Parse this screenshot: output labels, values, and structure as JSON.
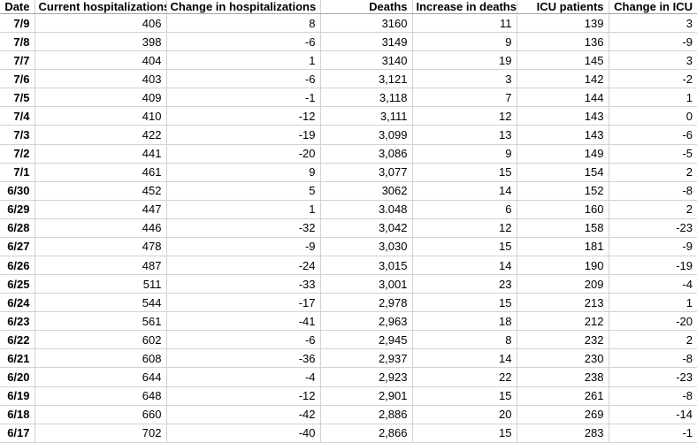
{
  "table": {
    "columns": [
      "Date",
      "Current hospitalizations",
      "Change in hospitalizations",
      "Deaths",
      "Increase in deaths",
      "ICU patients",
      "Change in ICU"
    ],
    "rows": [
      [
        "7/9",
        "406",
        "8",
        "3160",
        "11",
        "139",
        "3"
      ],
      [
        "7/8",
        "398",
        "-6",
        "3149",
        "9",
        "136",
        "-9"
      ],
      [
        "7/7",
        "404",
        "1",
        "3140",
        "19",
        "145",
        "3"
      ],
      [
        "7/6",
        "403",
        "-6",
        "3,121",
        "3",
        "142",
        "-2"
      ],
      [
        "7/5",
        "409",
        "-1",
        "3,118",
        "7",
        "144",
        "1"
      ],
      [
        "7/4",
        "410",
        "-12",
        "3,111",
        "12",
        "143",
        "0"
      ],
      [
        "7/3",
        "422",
        "-19",
        "3,099",
        "13",
        "143",
        "-6"
      ],
      [
        "7/2",
        "441",
        "-20",
        "3,086",
        "9",
        "149",
        "-5"
      ],
      [
        "7/1",
        "461",
        "9",
        "3,077",
        "15",
        "154",
        "2"
      ],
      [
        "6/30",
        "452",
        "5",
        "3062",
        "14",
        "152",
        "-8"
      ],
      [
        "6/29",
        "447",
        "1",
        "3.048",
        "6",
        "160",
        "2"
      ],
      [
        "6/28",
        "446",
        "-32",
        "3,042",
        "12",
        "158",
        "-23"
      ],
      [
        "6/27",
        "478",
        "-9",
        "3,030",
        "15",
        "181",
        "-9"
      ],
      [
        "6/26",
        "487",
        "-24",
        "3,015",
        "14",
        "190",
        "-19"
      ],
      [
        "6/25",
        "511",
        "-33",
        "3,001",
        "23",
        "209",
        "-4"
      ],
      [
        "6/24",
        "544",
        "-17",
        "2,978",
        "15",
        "213",
        "1"
      ],
      [
        "6/23",
        "561",
        "-41",
        "2,963",
        "18",
        "212",
        "-20"
      ],
      [
        "6/22",
        "602",
        "-6",
        "2,945",
        "8",
        "232",
        "2"
      ],
      [
        "6/21",
        "608",
        "-36",
        "2,937",
        "14",
        "230",
        "-8"
      ],
      [
        "6/20",
        "644",
        "-4",
        "2,923",
        "22",
        "238",
        "-23"
      ],
      [
        "6/19",
        "648",
        "-12",
        "2,901",
        "15",
        "261",
        "-8"
      ],
      [
        "6/18",
        "660",
        "-42",
        "2,886",
        "20",
        "269",
        "-14"
      ],
      [
        "6/17",
        "702",
        "-40",
        "2,866",
        "15",
        "283",
        "-1"
      ]
    ]
  },
  "colors": {
    "gridline": "#d2d2d2",
    "header_divider": "#a6a6a6",
    "text": "#000000",
    "background": "#ffffff"
  }
}
